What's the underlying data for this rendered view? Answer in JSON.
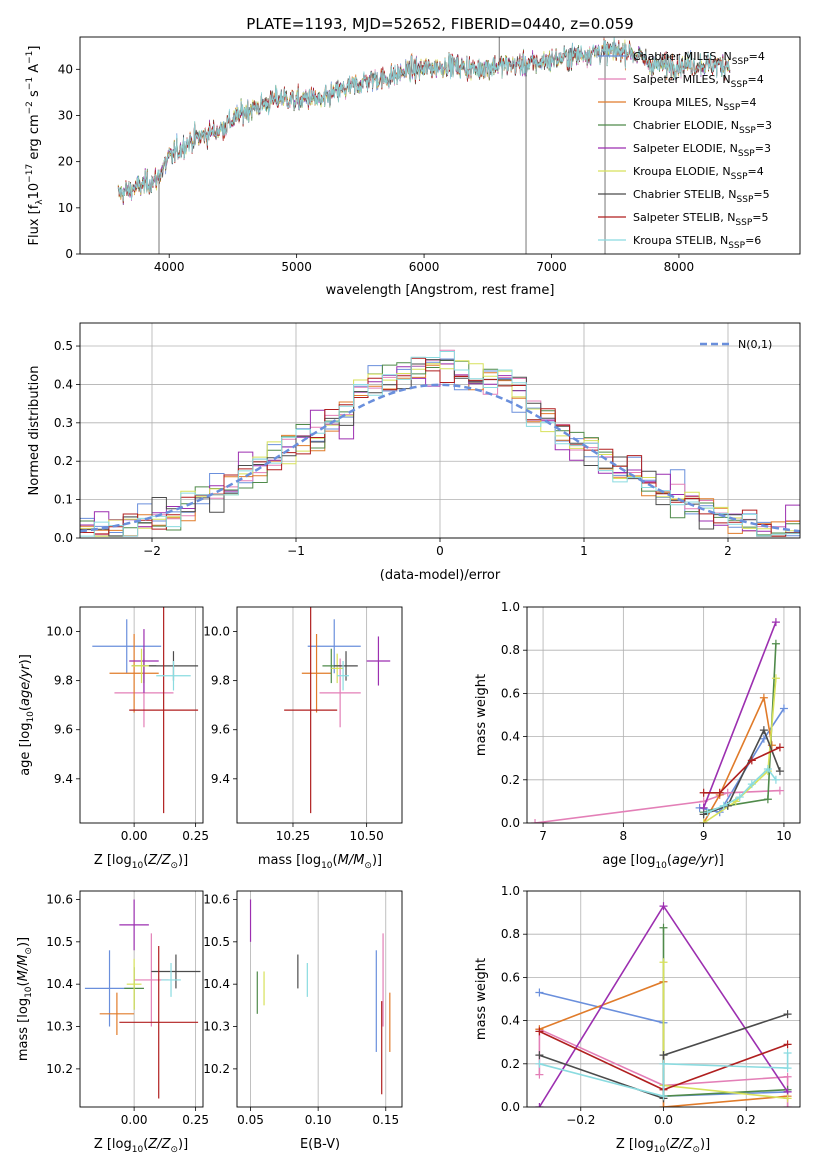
{
  "figure": {
    "title": "PLATE=1193, MJD=52652, FIBERID=0440, z=0.059"
  },
  "colors": {
    "Chabrier MILES": "#6a8fdc",
    "Salpeter MILES": "#e37fb7",
    "Kroupa MILES": "#e07b2a",
    "Chabrier ELODIE": "#4f8a4a",
    "Salpeter ELODIE": "#9c2fb0",
    "Kroupa ELODIE": "#d7e15a",
    "Chabrier STELIB": "#4b4b4b",
    "Salpeter STELIB": "#b01f1f",
    "Kroupa STELIB": "#8adbe0"
  },
  "chart_data": [
    {
      "type": "line",
      "title": "PLATE=1193, MJD=52652, FIBERID=0440, z=0.059",
      "xlabel": "wavelength [Angstrom, rest frame]",
      "ylabel": "Flux [f_λ 10^-17 erg cm^-2 s^-1 A^-1]",
      "xlim": [
        3300,
        8950
      ],
      "ylim": [
        0,
        47
      ],
      "xticks": [
        4000,
        5000,
        6000,
        7000,
        8000
      ],
      "yticks": [
        0,
        10,
        20,
        30,
        40
      ],
      "legend": "right",
      "observed_continuum": {
        "x": [
          3600,
          3700,
          3800,
          3900,
          4000,
          4100,
          4200,
          4300,
          4400,
          4500,
          4600,
          4700,
          4800,
          4900,
          5000,
          5100,
          5200,
          5300,
          5400,
          5500,
          5600,
          5700,
          5800,
          5900,
          6000,
          6200,
          6400,
          6600,
          6800,
          7000,
          7200,
          7400,
          7600,
          7800
        ],
        "y": [
          13,
          14,
          15,
          16,
          21,
          23,
          25,
          26,
          27,
          29,
          31,
          32,
          33,
          34,
          33,
          34,
          33,
          35,
          36,
          37,
          38,
          38,
          39,
          40,
          40,
          41,
          40,
          41,
          41,
          42,
          43,
          44,
          44,
          41
        ]
      },
      "series": [
        {
          "name": "Chabrier MILES",
          "n_ssp": "4"
        },
        {
          "name": "Salpeter MILES",
          "n_ssp": "4"
        },
        {
          "name": "Kroupa MILES",
          "n_ssp": "4"
        },
        {
          "name": "Chabrier ELODIE",
          "n_ssp": "3"
        },
        {
          "name": "Salpeter ELODIE",
          "n_ssp": "3"
        },
        {
          "name": "Kroupa ELODIE",
          "n_ssp": "4"
        },
        {
          "name": "Chabrier STELIB",
          "n_ssp": "5"
        },
        {
          "name": "Salpeter STELIB",
          "n_ssp": "5"
        },
        {
          "name": "Kroupa STELIB",
          "n_ssp": "6"
        }
      ]
    },
    {
      "type": "line",
      "subtype": "histogram",
      "xlabel": "(data-model)/error",
      "ylabel": "Normed distribution",
      "xlim": [
        -2.5,
        2.5
      ],
      "ylim": [
        0,
        0.56
      ],
      "xticks": [
        -2,
        -1,
        0,
        1,
        2
      ],
      "yticks": [
        0.0,
        0.1,
        0.2,
        0.3,
        0.4,
        0.5
      ],
      "legend": "top-right",
      "reference_label": "N(0,1)",
      "bin_width": 0.1,
      "grid": true
    },
    {
      "type": "scatter",
      "xlabel": "Z [log10(Z/Z_sun)]",
      "ylabel": "age  [log10(age/yr)]",
      "xlim": [
        -0.22,
        0.28
      ],
      "ylim": [
        9.22,
        10.1
      ],
      "xticks": [
        0.0,
        0.25
      ],
      "yticks": [
        9.4,
        9.6,
        9.8,
        10.0
      ],
      "points": [
        {
          "series": "Chabrier MILES",
          "x": -0.03,
          "xerr": 0.14,
          "y": 9.94,
          "yerr": 0.11
        },
        {
          "series": "Salpeter MILES",
          "x": 0.04,
          "xerr": 0.12,
          "y": 9.75,
          "yerr": 0.14
        },
        {
          "series": "Kroupa MILES",
          "x": 0.0,
          "xerr": 0.1,
          "y": 9.83,
          "yerr": 0.16
        },
        {
          "series": "Chabrier ELODIE",
          "x": 0.04,
          "xerr": 0.05,
          "y": 9.86,
          "yerr": 0.07
        },
        {
          "series": "Salpeter ELODIE",
          "x": 0.04,
          "xerr": 0.06,
          "y": 9.88,
          "yerr": 0.13
        },
        {
          "series": "Kroupa ELODIE",
          "x": 0.03,
          "xerr": 0.04,
          "y": 9.86,
          "yerr": 0.07
        },
        {
          "series": "Chabrier STELIB",
          "x": 0.16,
          "xerr": 0.1,
          "y": 9.86,
          "yerr": 0.06
        },
        {
          "series": "Salpeter STELIB",
          "x": 0.12,
          "xerr": 0.14,
          "y": 9.68,
          "yerr": 0.42
        },
        {
          "series": "Kroupa STELIB",
          "x": 0.16,
          "xerr": 0.07,
          "y": 9.82,
          "yerr": 0.06
        }
      ]
    },
    {
      "type": "scatter",
      "xlabel": "mass [log10(M/M_sun)]",
      "ylabel": "",
      "xlim": [
        10.06,
        10.62
      ],
      "ylim": [
        9.22,
        10.1
      ],
      "xticks": [
        10.25,
        10.5
      ],
      "yticks": [
        9.4,
        9.6,
        9.8,
        10.0
      ],
      "points": [
        {
          "series": "Chabrier MILES",
          "x": 10.39,
          "xerr": 0.09,
          "y": 9.94,
          "yerr": 0.11
        },
        {
          "series": "Salpeter MILES",
          "x": 10.41,
          "xerr": 0.07,
          "y": 9.75,
          "yerr": 0.14
        },
        {
          "series": "Kroupa MILES",
          "x": 10.33,
          "xerr": 0.05,
          "y": 9.83,
          "yerr": 0.16
        },
        {
          "series": "Chabrier ELODIE",
          "x": 10.38,
          "xerr": 0.03,
          "y": 9.86,
          "yerr": 0.07
        },
        {
          "series": "Salpeter ELODIE",
          "x": 10.54,
          "xerr": 0.04,
          "y": 9.88,
          "yerr": 0.1
        },
        {
          "series": "Kroupa ELODIE",
          "x": 10.4,
          "xerr": 0.02,
          "y": 9.85,
          "yerr": 0.06
        },
        {
          "series": "Chabrier STELIB",
          "x": 10.43,
          "xerr": 0.04,
          "y": 9.86,
          "yerr": 0.06
        },
        {
          "series": "Salpeter STELIB",
          "x": 10.31,
          "xerr": 0.09,
          "y": 9.68,
          "yerr": 0.42
        },
        {
          "series": "Kroupa STELIB",
          "x": 10.42,
          "xerr": 0.02,
          "y": 9.82,
          "yerr": 0.06
        }
      ]
    },
    {
      "type": "line",
      "xlabel": "age  [log10(age/yr)]",
      "ylabel": "mass weight",
      "xlim": [
        6.8,
        10.2
      ],
      "ylim": [
        0,
        1.0
      ],
      "xticks": [
        7,
        8,
        9,
        10
      ],
      "yticks": [
        0.0,
        0.2,
        0.4,
        0.6,
        0.8,
        1.0
      ],
      "grid": true,
      "series": [
        {
          "name": "Chabrier MILES",
          "x": [
            8.95,
            9.2,
            9.75,
            10.0
          ],
          "y": [
            0.07,
            0.05,
            0.39,
            0.53
          ]
        },
        {
          "name": "Salpeter MILES",
          "x": [
            6.9,
            9.0,
            9.3,
            9.95
          ],
          "y": [
            0.0,
            0.1,
            0.14,
            0.15
          ]
        },
        {
          "name": "Kroupa MILES",
          "x": [
            9.0,
            9.2,
            9.75,
            9.85
          ],
          "y": [
            0.0,
            0.13,
            0.58,
            0.36
          ]
        },
        {
          "name": "Chabrier ELODIE",
          "x": [
            9.0,
            9.3,
            9.8,
            9.9
          ],
          "y": [
            0.05,
            0.08,
            0.11,
            0.83
          ]
        },
        {
          "name": "Salpeter ELODIE",
          "x": [
            9.0,
            9.9
          ],
          "y": [
            0.07,
            0.93
          ]
        },
        {
          "name": "Kroupa ELODIE",
          "x": [
            9.0,
            9.4,
            9.8,
            9.9
          ],
          "y": [
            0.0,
            0.1,
            0.24,
            0.67
          ]
        },
        {
          "name": "Chabrier STELIB",
          "x": [
            9.0,
            9.3,
            9.75,
            9.95
          ],
          "y": [
            0.04,
            0.08,
            0.43,
            0.24
          ]
        },
        {
          "name": "Salpeter STELIB",
          "x": [
            9.0,
            9.2,
            9.6,
            9.95
          ],
          "y": [
            0.14,
            0.14,
            0.29,
            0.35
          ]
        },
        {
          "name": "Kroupa STELIB",
          "x": [
            9.05,
            9.25,
            9.45,
            9.6,
            9.8,
            9.9
          ],
          "y": [
            0.05,
            0.08,
            0.12,
            0.18,
            0.25,
            0.2
          ]
        }
      ]
    },
    {
      "type": "scatter",
      "xlabel": "Z [log10(Z/Z_sun)]",
      "ylabel": "mass [log10(M/M_sun)]",
      "xlim": [
        -0.22,
        0.28
      ],
      "ylim": [
        10.11,
        10.62
      ],
      "xticks": [
        0.0,
        0.25
      ],
      "yticks": [
        10.2,
        10.3,
        10.4,
        10.5,
        10.6
      ],
      "points": [
        {
          "series": "Chabrier MILES",
          "x": -0.1,
          "xerr": 0.1,
          "y": 10.39,
          "yerr": 0.09
        },
        {
          "series": "Salpeter MILES",
          "x": 0.07,
          "xerr": 0.07,
          "y": 10.41,
          "yerr": 0.11
        },
        {
          "series": "Kroupa MILES",
          "x": -0.07,
          "xerr": 0.07,
          "y": 10.33,
          "yerr": 0.05
        },
        {
          "series": "Chabrier ELODIE",
          "x": 0.0,
          "xerr": 0.04,
          "y": 10.39,
          "yerr": 0.05
        },
        {
          "series": "Salpeter ELODIE",
          "x": 0.0,
          "xerr": 0.06,
          "y": 10.54,
          "yerr": 0.06
        },
        {
          "series": "Kroupa ELODIE",
          "x": 0.0,
          "xerr": 0.03,
          "y": 10.4,
          "yerr": 0.06
        },
        {
          "series": "Chabrier STELIB",
          "x": 0.17,
          "xerr": 0.1,
          "y": 10.43,
          "yerr": 0.04
        },
        {
          "series": "Salpeter STELIB",
          "x": 0.1,
          "xerr": 0.16,
          "y": 10.31,
          "yerr": 0.18
        },
        {
          "series": "Kroupa STELIB",
          "x": 0.15,
          "xerr": 0.04,
          "y": 10.41,
          "yerr": 0.04
        }
      ]
    },
    {
      "type": "scatter",
      "xlabel": "E(B-V)",
      "ylabel": "",
      "xlim": [
        0.04,
        0.162
      ],
      "ylim": [
        10.11,
        10.62
      ],
      "xticks": [
        0.05,
        0.1,
        0.15
      ],
      "yticks": [
        10.2,
        10.3,
        10.4,
        10.5,
        10.6
      ],
      "points": [
        {
          "series": "Chabrier MILES",
          "x": 0.143,
          "y": 10.36,
          "yerr": 0.12
        },
        {
          "series": "Salpeter MILES",
          "x": 0.148,
          "y": 10.41,
          "yerr": 0.11
        },
        {
          "series": "Kroupa MILES",
          "x": 0.153,
          "y": 10.31,
          "yerr": 0.07
        },
        {
          "series": "Chabrier ELODIE",
          "x": 0.055,
          "y": 10.38,
          "yerr": 0.05
        },
        {
          "series": "Salpeter ELODIE",
          "x": 0.05,
          "y": 10.55,
          "yerr": 0.05
        },
        {
          "series": "Kroupa ELODIE",
          "x": 0.06,
          "y": 10.39,
          "yerr": 0.04
        },
        {
          "series": "Chabrier STELIB",
          "x": 0.085,
          "y": 10.43,
          "yerr": 0.04
        },
        {
          "series": "Salpeter STELIB",
          "x": 0.147,
          "y": 10.25,
          "yerr": 0.11
        },
        {
          "series": "Kroupa STELIB",
          "x": 0.092,
          "y": 10.41,
          "yerr": 0.04
        }
      ]
    },
    {
      "type": "line",
      "xlabel": "Z [log10(Z/Z_sun)]",
      "ylabel": "mass weight",
      "xlim": [
        -0.33,
        0.33
      ],
      "ylim": [
        0,
        1.0
      ],
      "xticks": [
        -0.2,
        0.0,
        0.2
      ],
      "yticks": [
        0.0,
        0.2,
        0.4,
        0.6,
        0.8,
        1.0
      ],
      "grid": true,
      "series": [
        {
          "name": "Chabrier MILES",
          "x": [
            -0.3,
            0.0,
            0.0,
            0.3
          ],
          "y": [
            0.53,
            0.39,
            0.05,
            0.07
          ]
        },
        {
          "name": "Salpeter MILES",
          "x": [
            -0.3,
            -0.3,
            0.0,
            0.3,
            0.3
          ],
          "y": [
            0.15,
            0.36,
            0.1,
            0.14,
            0.0
          ]
        },
        {
          "name": "Kroupa MILES",
          "x": [
            -0.3,
            0.0,
            0.0,
            0.3
          ],
          "y": [
            0.36,
            0.58,
            0.0,
            0.05
          ]
        },
        {
          "name": "Chabrier ELODIE",
          "x": [
            0.0,
            0.0,
            0.3
          ],
          "y": [
            0.83,
            0.05,
            0.08
          ]
        },
        {
          "name": "Salpeter ELODIE",
          "x": [
            -0.3,
            0.0,
            0.3
          ],
          "y": [
            0.0,
            0.93,
            0.07
          ]
        },
        {
          "name": "Kroupa ELODIE",
          "x": [
            0.0,
            0.0,
            0.3
          ],
          "y": [
            0.67,
            0.1,
            0.04
          ]
        },
        {
          "name": "Chabrier STELIB",
          "x": [
            -0.3,
            0.0,
            0.0,
            0.3
          ],
          "y": [
            0.24,
            0.04,
            0.24,
            0.43
          ]
        },
        {
          "name": "Salpeter STELIB",
          "x": [
            -0.3,
            0.0,
            0.3
          ],
          "y": [
            0.35,
            0.08,
            0.29
          ]
        },
        {
          "name": "Kroupa STELIB",
          "x": [
            -0.3,
            0.0,
            0.0,
            0.3,
            0.3
          ],
          "y": [
            0.2,
            0.05,
            0.2,
            0.18,
            0.25
          ]
        }
      ]
    }
  ]
}
